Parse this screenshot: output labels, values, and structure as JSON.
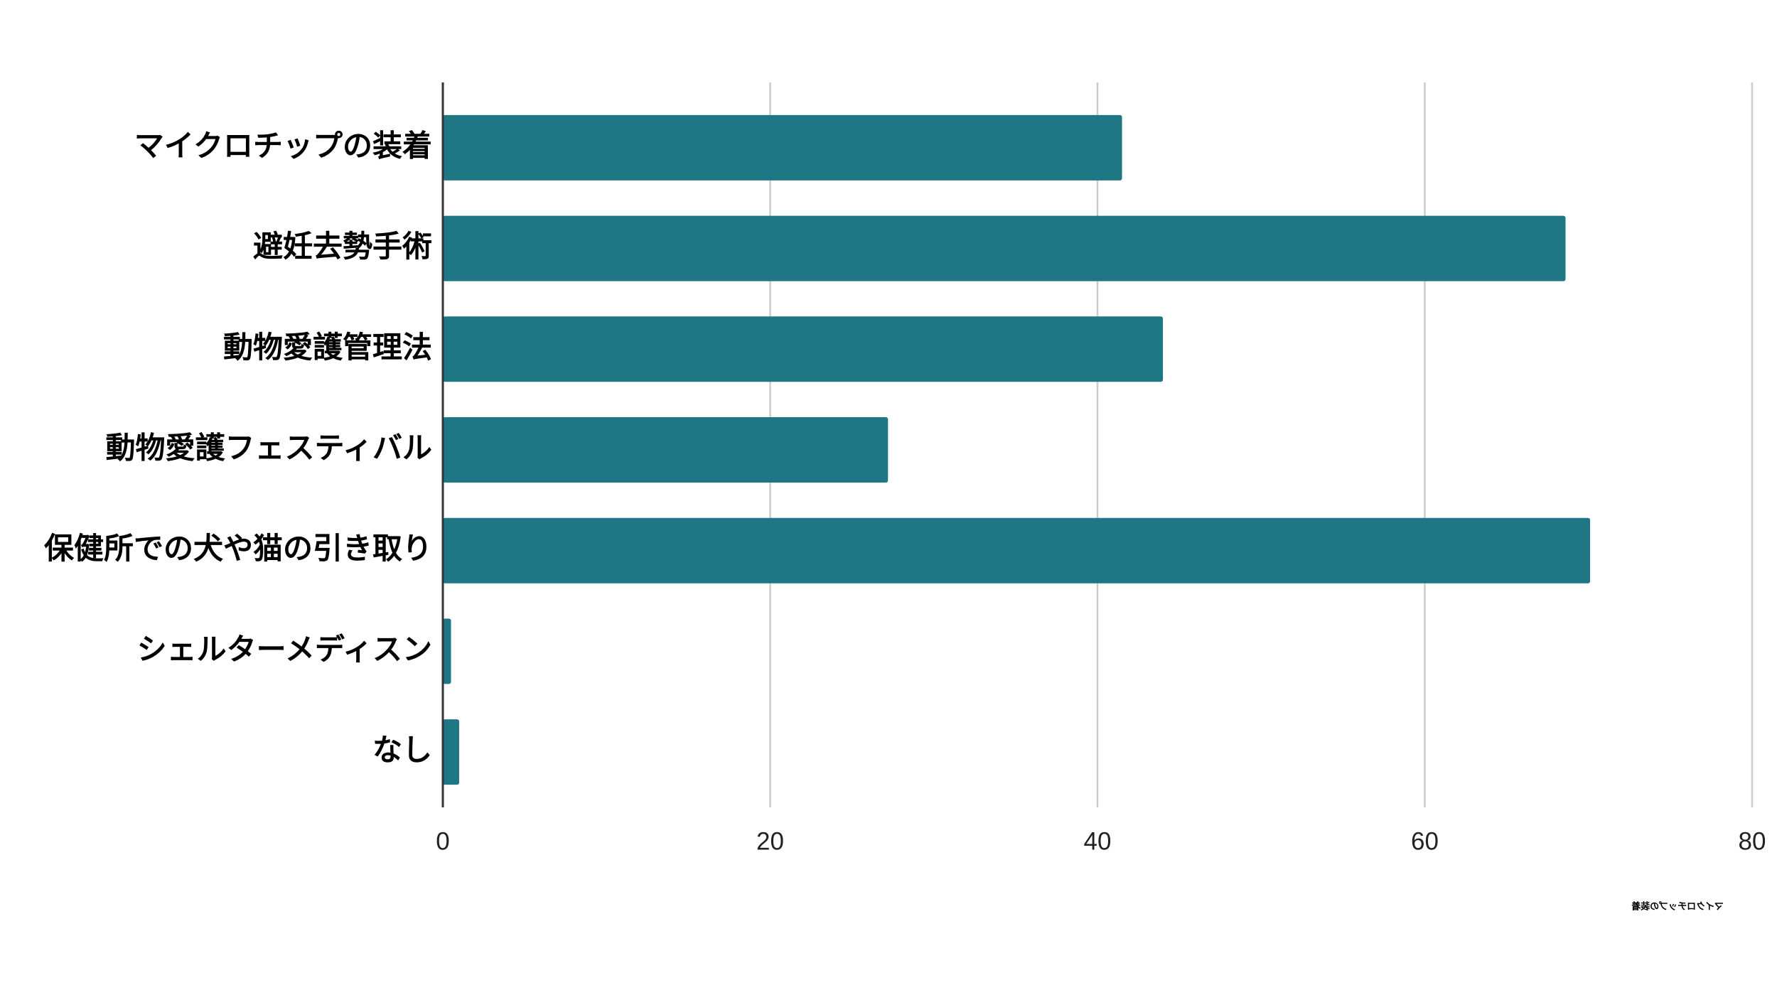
{
  "chart_data": {
    "type": "bar",
    "orientation": "horizontal",
    "categories": [
      "マイクロチップの装着",
      "避妊去勢手術",
      "動物愛護管理法",
      "動物愛護フェスティバル",
      "保健所での犬や猫の引き取り",
      "シェルターメディスン",
      "なし"
    ],
    "series": [
      {
        "name": "マイクロチップの装着",
        "color": "#1f7684",
        "values": [
          41.5,
          68.6,
          44,
          27.2,
          70.1,
          0.5,
          1
        ]
      }
    ],
    "xlim": [
      0,
      80
    ],
    "xticks": [
      0,
      20,
      40,
      60,
      80
    ],
    "grid": true
  }
}
